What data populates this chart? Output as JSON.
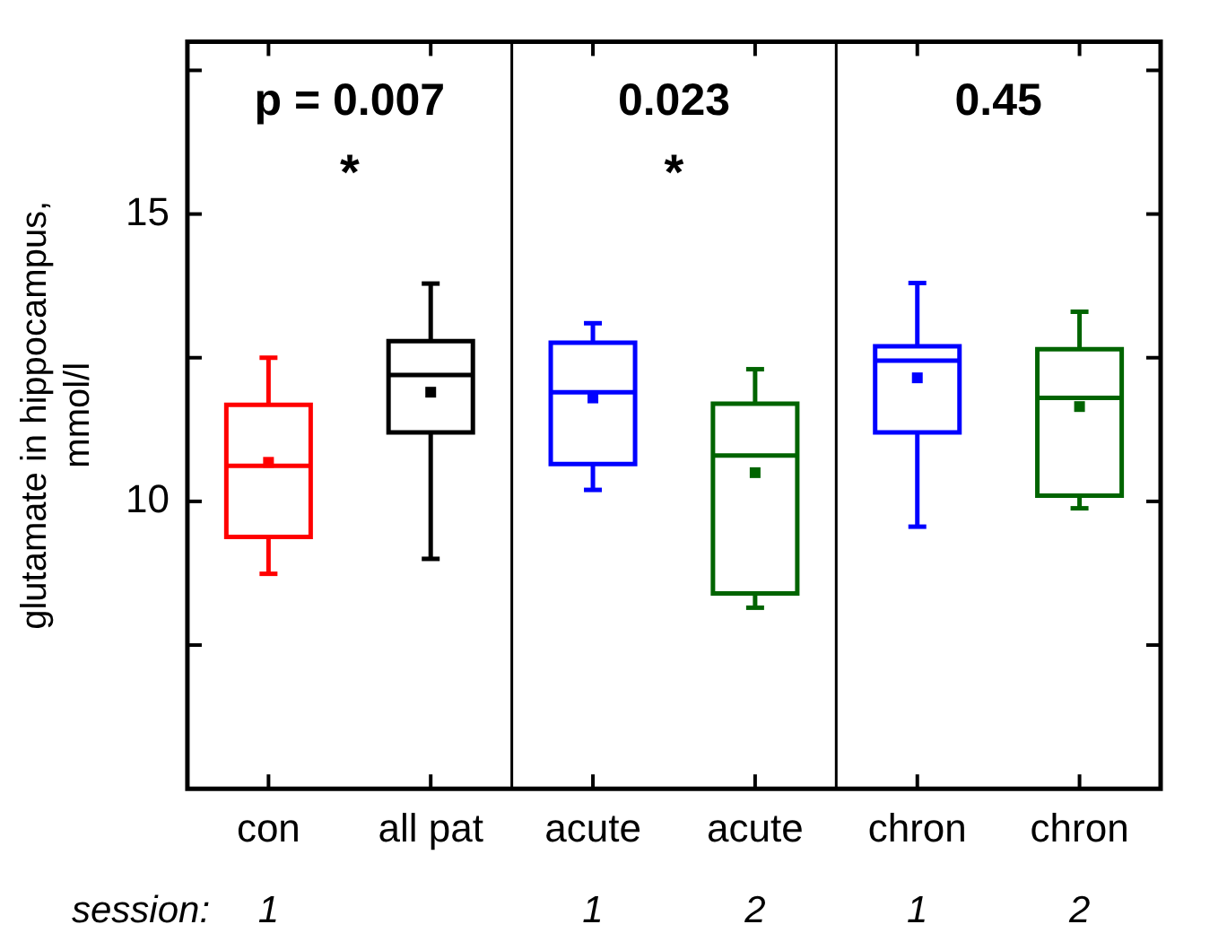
{
  "chart_data": {
    "type": "box",
    "ylabel": "glutamate in hippocampus,\nmmol/l",
    "categories": [
      "con",
      "all pat",
      "acute",
      "acute",
      "chron",
      "chron"
    ],
    "colors": [
      "#ff0000",
      "#000000",
      "#0000ff",
      "#006400",
      "#0000ff",
      "#006400"
    ],
    "boxes": [
      {
        "low": 8.74,
        "q1": 9.38,
        "median": 10.62,
        "q3": 11.68,
        "high": 12.5,
        "mean": 10.68
      },
      {
        "low": 9.0,
        "q1": 11.2,
        "median": 12.2,
        "q3": 12.79,
        "high": 13.79,
        "mean": 11.9
      },
      {
        "low": 10.2,
        "q1": 10.65,
        "median": 11.9,
        "q3": 12.76,
        "high": 13.1,
        "mean": 11.8
      },
      {
        "low": 8.15,
        "q1": 8.4,
        "median": 10.8,
        "q3": 11.7,
        "high": 12.3,
        "mean": 10.5
      },
      {
        "low": 9.56,
        "q1": 11.2,
        "median": 12.45,
        "q3": 12.7,
        "high": 13.8,
        "mean": 12.15
      },
      {
        "low": 9.88,
        "q1": 10.1,
        "median": 11.8,
        "q3": 12.65,
        "high": 13.3,
        "mean": 11.65
      }
    ],
    "ylim": [
      5,
      18
    ],
    "yticks": [
      {
        "value": 7.5,
        "label": null
      },
      10,
      {
        "value": 12.5,
        "label": null
      },
      15,
      {
        "value": 17.5,
        "label": null
      }
    ],
    "grid": false,
    "annotations": [
      "p = 0.007",
      "*",
      "0.023",
      "*",
      "0.45",
      "session:",
      "1",
      "1",
      "2",
      "1",
      "2"
    ]
  }
}
